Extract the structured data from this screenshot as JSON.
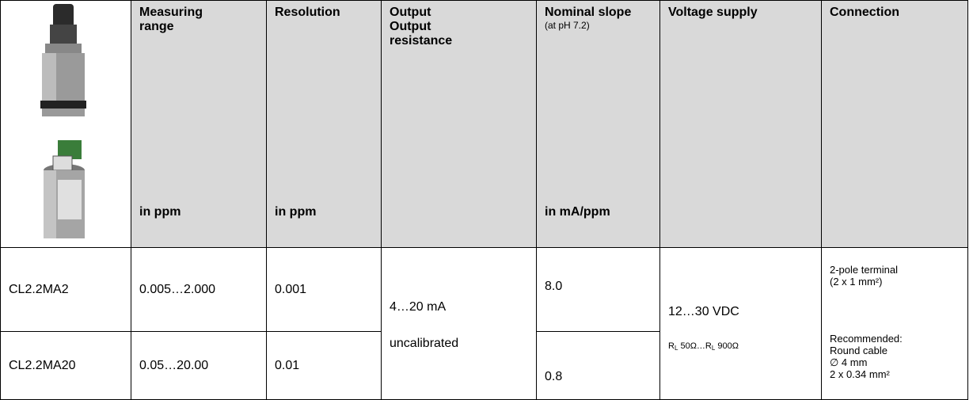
{
  "header": {
    "columns": [
      {
        "title": [
          "Measuring",
          "range"
        ],
        "unit": "in ppm"
      },
      {
        "title": [
          "Resolution"
        ],
        "unit": "in ppm"
      },
      {
        "title": [
          "Output",
          "Output",
          "resistance"
        ]
      },
      {
        "title": [
          "Nominal slope"
        ],
        "note": "(at pH 7.2)",
        "unit": "in mA/ppm"
      },
      {
        "title": [
          "Voltage supply"
        ]
      },
      {
        "title": [
          "Connection"
        ]
      }
    ]
  },
  "table": {
    "rows": [
      {
        "model": "CL2.2MA2",
        "range": "0.005…2.000",
        "resolution": "0.001",
        "slope": "8.0"
      },
      {
        "model": "CL2.2MA20",
        "range": "0.05…20.00",
        "resolution": "0.01",
        "slope": "0.8"
      }
    ],
    "output": [
      "4…20 mA",
      "uncalibrated"
    ],
    "voltage": {
      "supply": "12…30 VDC",
      "load": [
        "R",
        "L",
        " 50Ω…",
        "R",
        "L",
        " 900Ω"
      ]
    },
    "connection": {
      "terminal": [
        "2-pole terminal",
        "(2 x 1 mm²)"
      ],
      "cable": [
        "Recommended:",
        "Round cable",
        "∅ 4 mm",
        "2 x 0.34 mm²"
      ]
    }
  }
}
